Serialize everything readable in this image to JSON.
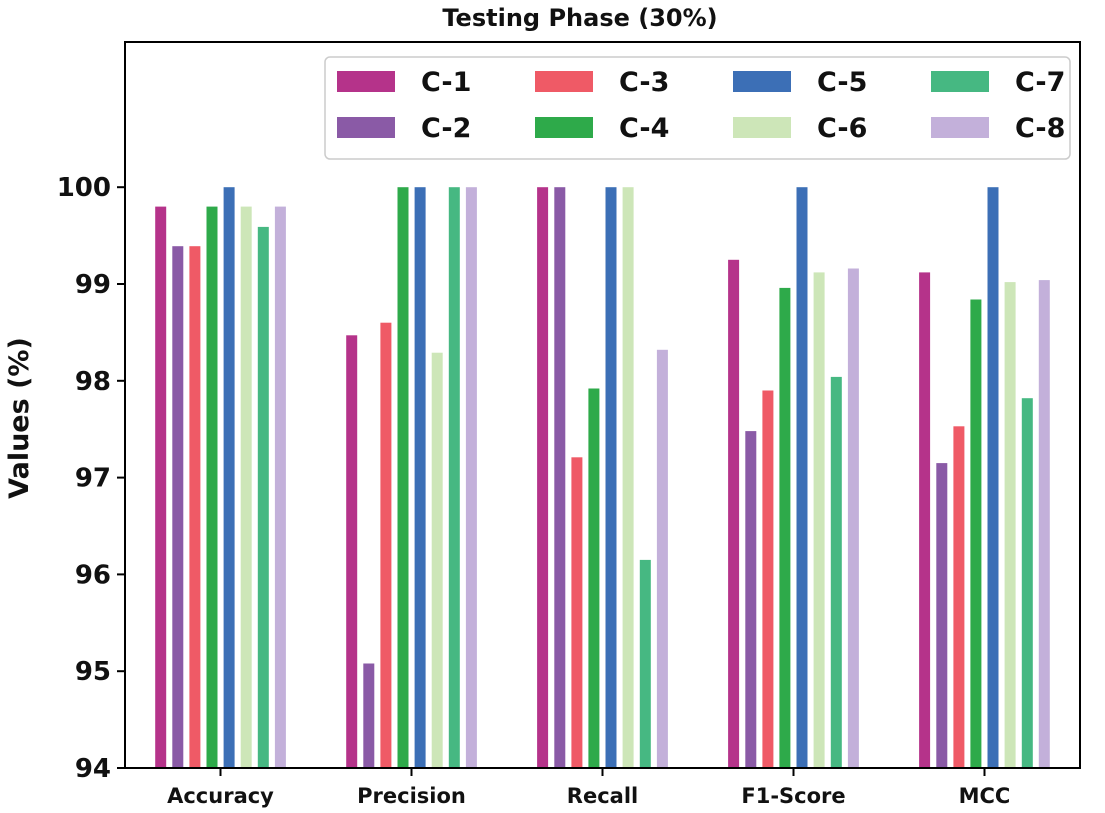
{
  "chart_data": {
    "type": "bar",
    "title": "Testing Phase (30%)",
    "xlabel": "",
    "ylabel": "Values (%)",
    "ylim": [
      94,
      101.5
    ],
    "yticks": [
      94,
      95,
      96,
      97,
      98,
      99,
      100
    ],
    "grid": false,
    "legend_position": "top-right",
    "legend_columns": 4,
    "categories": [
      "Accuracy",
      "Precision",
      "Recall",
      "F1-Score",
      "MCC"
    ],
    "series": [
      {
        "name": "C-1",
        "color": "#b5338a",
        "values": [
          99.8,
          98.47,
          100.0,
          99.25,
          99.12
        ]
      },
      {
        "name": "C-2",
        "color": "#8a5aa6",
        "values": [
          99.39,
          95.08,
          100.0,
          97.48,
          97.15
        ]
      },
      {
        "name": "C-3",
        "color": "#ef5a66",
        "values": [
          99.39,
          98.6,
          97.21,
          97.9,
          97.53
        ]
      },
      {
        "name": "C-4",
        "color": "#2eaa4a",
        "values": [
          99.8,
          100.0,
          97.92,
          98.96,
          98.84
        ]
      },
      {
        "name": "C-5",
        "color": "#3c6fb6",
        "values": [
          100.0,
          100.0,
          100.0,
          100.0,
          100.0
        ]
      },
      {
        "name": "C-6",
        "color": "#cde6b8",
        "values": [
          99.8,
          98.29,
          100.0,
          99.12,
          99.02
        ]
      },
      {
        "name": "C-7",
        "color": "#46b882",
        "values": [
          99.59,
          100.0,
          96.15,
          98.04,
          97.82
        ]
      },
      {
        "name": "C-8",
        "color": "#c3b0da",
        "values": [
          99.8,
          100.0,
          98.32,
          99.16,
          99.04
        ]
      }
    ]
  }
}
